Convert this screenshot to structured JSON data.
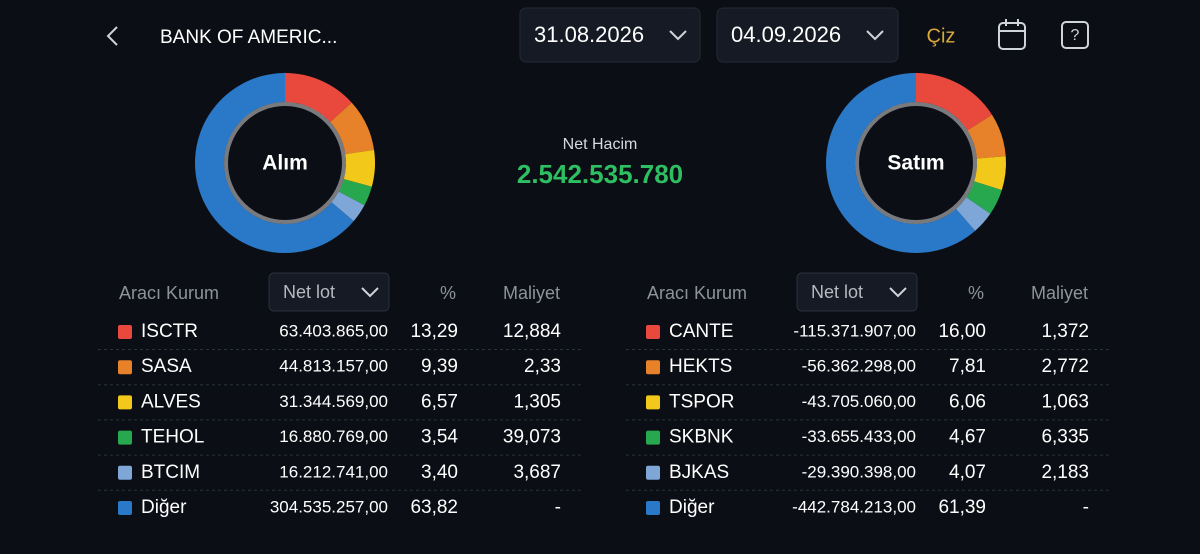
{
  "header": {
    "title": "BANK OF AMERIC...",
    "start_date": "31.08.2026",
    "end_date": "04.09.2026",
    "draw_button": "Çiz"
  },
  "summary": {
    "label": "Net Hacim",
    "value": "2.542.535.780"
  },
  "panels": [
    {
      "center_label": "Alım",
      "columns": [
        "Aracı Kurum",
        "Net lot",
        "%",
        "Maliyet"
      ],
      "rows": [
        {
          "name": "ISCTR",
          "color": "#e8493c",
          "net_lot": "63.403.865,00",
          "pct": {
            "value": 13.29,
            "label": "13,29"
          },
          "cost": "12,884"
        },
        {
          "name": "SASA",
          "color": "#e8822a",
          "net_lot": "44.813.157,00",
          "pct": {
            "value": 9.39,
            "label": "9,39"
          },
          "cost": "2,33"
        },
        {
          "name": "ALVES",
          "color": "#f2c81b",
          "net_lot": "31.344.569,00",
          "pct": {
            "value": 6.57,
            "label": "6,57"
          },
          "cost": "1,305"
        },
        {
          "name": "TEHOL",
          "color": "#27a84f",
          "net_lot": "16.880.769,00",
          "pct": {
            "value": 3.54,
            "label": "3,54"
          },
          "cost": "39,073"
        },
        {
          "name": "BTCIM",
          "color": "#7ea6d6",
          "net_lot": "16.212.741,00",
          "pct": {
            "value": 3.4,
            "label": "3,40"
          },
          "cost": "3,687"
        },
        {
          "name": "Diğer",
          "color": "#2a78c8",
          "net_lot": "304.535.257,00",
          "pct": {
            "value": 63.82,
            "label": "63,82"
          },
          "cost": "-"
        }
      ]
    },
    {
      "center_label": "Satım",
      "columns": [
        "Aracı Kurum",
        "Net lot",
        "%",
        "Maliyet"
      ],
      "rows": [
        {
          "name": "CANTE",
          "color": "#e8493c",
          "net_lot": "-115.371.907,00",
          "pct": {
            "value": 16.0,
            "label": "16,00"
          },
          "cost": "1,372"
        },
        {
          "name": "HEKTS",
          "color": "#e8822a",
          "net_lot": "-56.362.298,00",
          "pct": {
            "value": 7.81,
            "label": "7,81"
          },
          "cost": "2,772"
        },
        {
          "name": "TSPOR",
          "color": "#f2c81b",
          "net_lot": "-43.705.060,00",
          "pct": {
            "value": 6.06,
            "label": "6,06"
          },
          "cost": "1,063"
        },
        {
          "name": "SKBNK",
          "color": "#27a84f",
          "net_lot": "-33.655.433,00",
          "pct": {
            "value": 4.67,
            "label": "4,67"
          },
          "cost": "6,335"
        },
        {
          "name": "BJKAS",
          "color": "#7ea6d6",
          "net_lot": "-29.390.398,00",
          "pct": {
            "value": 4.07,
            "label": "4,07"
          },
          "cost": "2,183"
        },
        {
          "name": "Diğer",
          "color": "#2a78c8",
          "net_lot": "-442.784.213,00",
          "pct": {
            "value": 61.39,
            "label": "61,39"
          },
          "cost": "-"
        }
      ]
    }
  ]
}
